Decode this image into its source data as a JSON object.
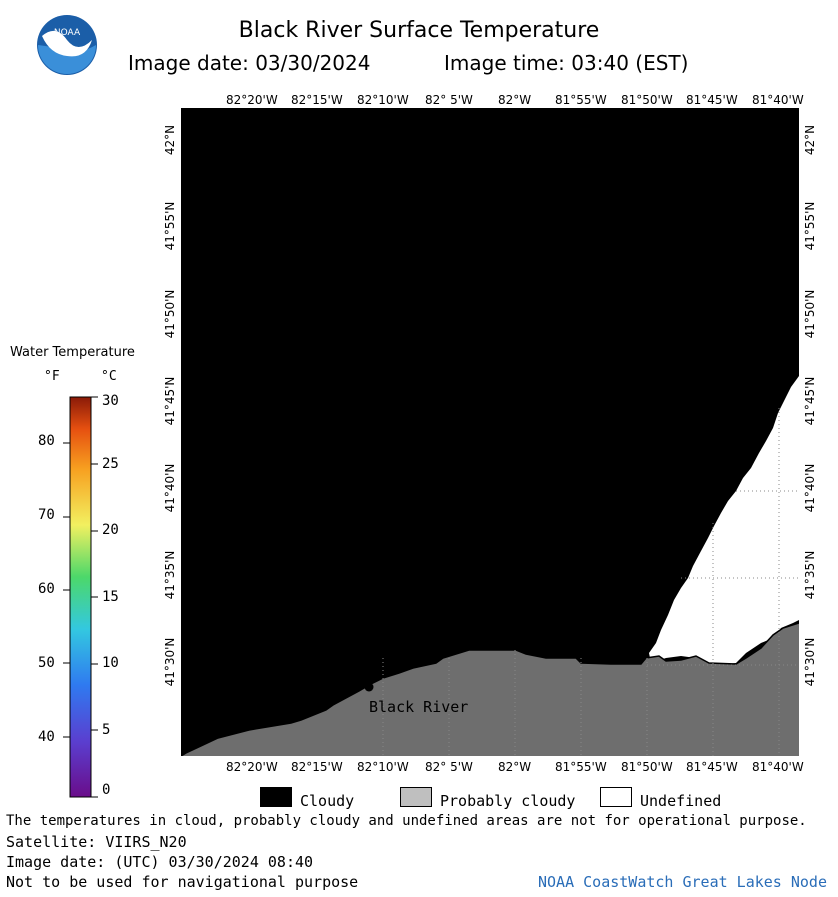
{
  "header": {
    "title": "Black River Surface Temperature",
    "image_date": "Image date: 03/30/2024",
    "image_time": "Image time: 03:40 (EST)",
    "logo_text": "NOAA"
  },
  "map": {
    "lon_labels": [
      "82°20'W",
      "82°15'W",
      "82°10'W",
      "82° 5'W",
      "82°W",
      "81°55'W",
      "81°50'W",
      "81°45'W",
      "81°40'W"
    ],
    "lat_labels": [
      "42°N",
      "41°55'N",
      "41°50'N",
      "41°45'N",
      "41°40'N",
      "41°35'N",
      "41°30'N"
    ],
    "place_label": "Black River"
  },
  "colorbar": {
    "title": "Water Temperature",
    "unit_f": "°F",
    "unit_c": "°C",
    "f_ticks": [
      "80",
      "70",
      "60",
      "50",
      "40"
    ],
    "c_ticks": [
      "30",
      "25",
      "20",
      "15",
      "10",
      "5",
      "0"
    ]
  },
  "legend": {
    "cloudy": "Cloudy",
    "probably_cloudy": "Probably cloudy",
    "undefined": "Undefined",
    "colors": {
      "cloudy": "#000000",
      "probably_cloudy": "#bfbfbf",
      "undefined": "#ffffff",
      "land": "#6e6e6e"
    }
  },
  "footer": {
    "disclaimer": "The temperatures in cloud, probably cloudy and undefined areas are not for operational purpose.",
    "satellite": "Satellite: VIIRS_N20",
    "utc_date": "Image date: (UTC) 03/30/2024  08:40",
    "nav_warning": "Not to be used for navigational purpose",
    "credit": "NOAA CoastWatch Great Lakes Node"
  }
}
